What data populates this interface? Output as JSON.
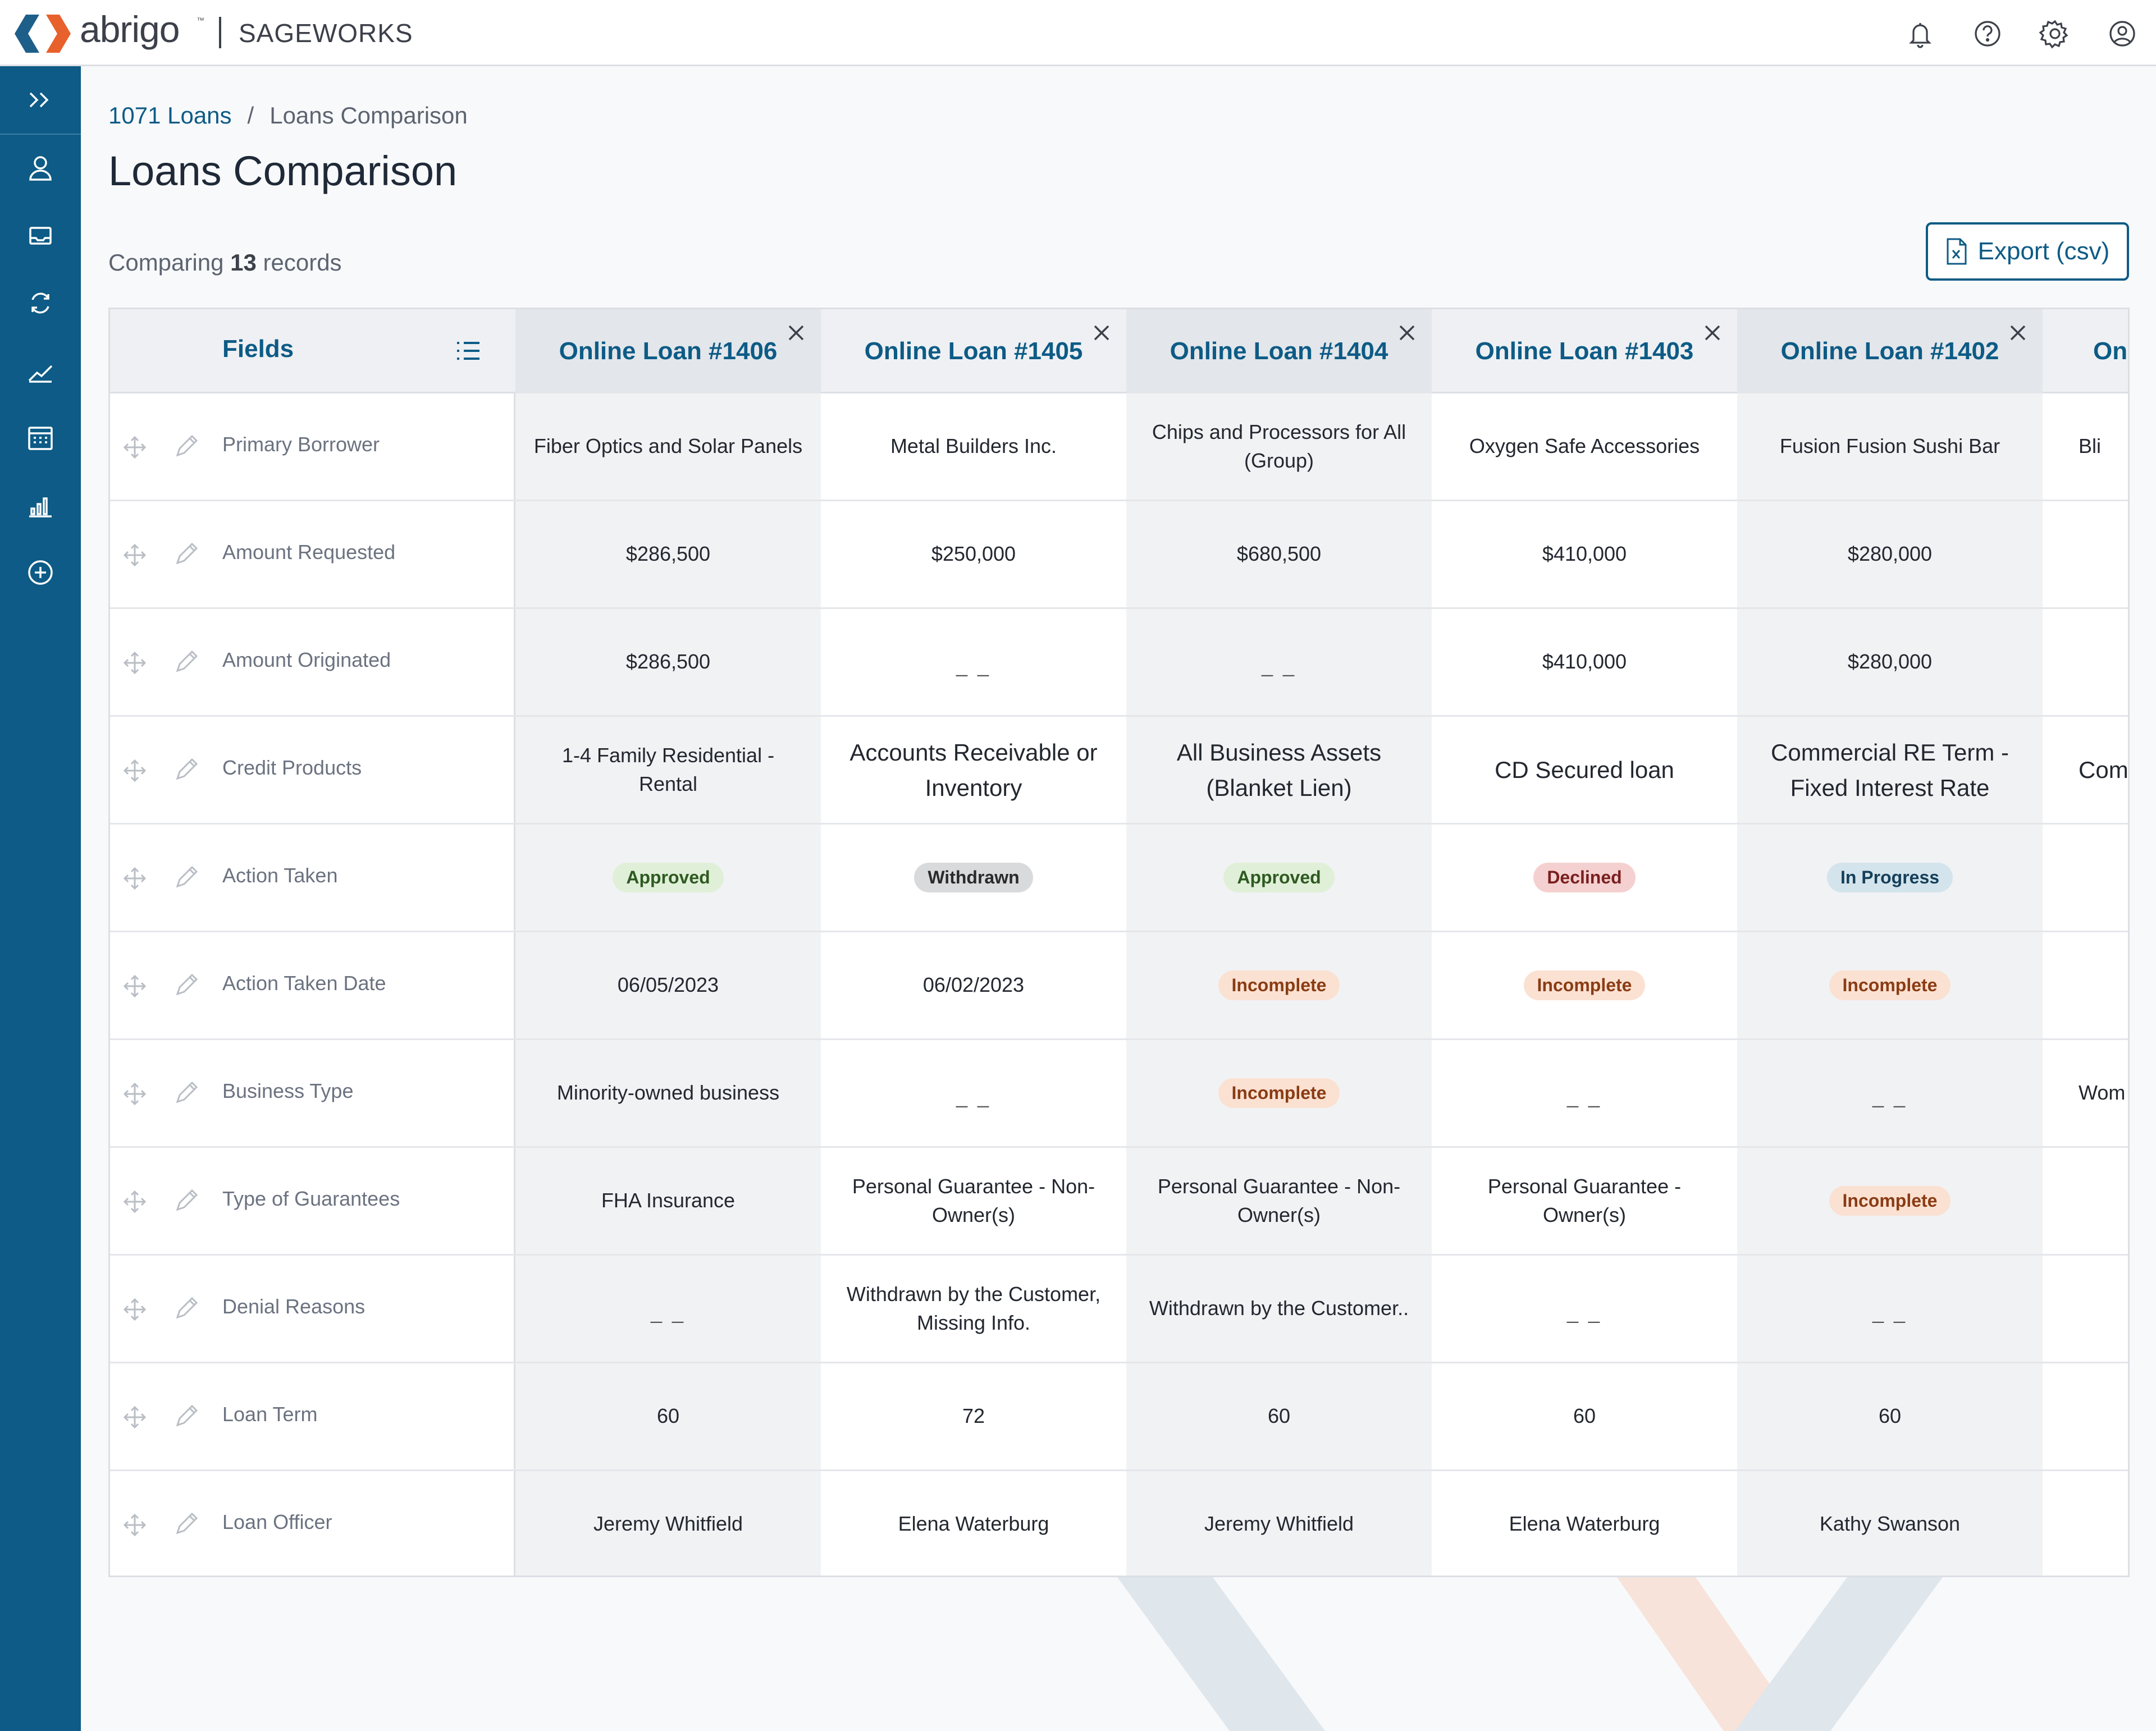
{
  "brand": {
    "logo_text": "abrigo",
    "tm": "™",
    "product": "SAGEWORKS"
  },
  "top_icons": [
    "bell-icon",
    "help-icon",
    "gear-icon",
    "user-circle-icon"
  ],
  "sidebar": [
    "expand-icon",
    "person-icon",
    "inbox-icon",
    "refresh-icon",
    "trend-icon",
    "calendar-icon",
    "bar-chart-icon",
    "add-circle-icon"
  ],
  "breadcrumb": {
    "link": "1071 Loans",
    "sep": "/",
    "current": "Loans Comparison"
  },
  "page_title": "Loans Comparison",
  "comparing": {
    "prefix": "Comparing",
    "count": "13",
    "suffix": "records"
  },
  "export_label": "Export (csv)",
  "fields_header": "Fields",
  "columns": [
    {
      "title": "Online Loan #1406"
    },
    {
      "title": "Online Loan #1405"
    },
    {
      "title": "Online Loan #1404"
    },
    {
      "title": "Online Loan #1403"
    },
    {
      "title": "Online Loan #1402"
    },
    {
      "title": "Onl"
    }
  ],
  "rows": [
    {
      "field": "Primary Borrower",
      "values": [
        "Fiber Optics and Solar Panels",
        "Metal Builders Inc.",
        "Chips and Processors for All (Group)",
        "Oxygen Safe Accessories",
        "Fusion Fusion Sushi Bar",
        "Bli"
      ]
    },
    {
      "field": "Amount Requested",
      "values": [
        "$286,500",
        "$250,000",
        "$680,500",
        "$410,000",
        "$280,000",
        ""
      ]
    },
    {
      "field": "Amount Originated",
      "values": [
        "$286,500",
        "_ _",
        "_ _",
        "$410,000",
        "$280,000",
        ""
      ]
    },
    {
      "field": "Credit Products",
      "values": [
        "1-4 Family Residential - Rental",
        "Accounts Receivable or Inventory",
        "All Business Assets (Blanket Lien)",
        "CD Secured loan",
        "Commercial RE Term - Fixed Interest Rate",
        "Com Fix"
      ]
    },
    {
      "field": "Action Taken",
      "values": [
        "Approved",
        "Withdrawn",
        "Approved",
        "Declined",
        "In Progress",
        ""
      ]
    },
    {
      "field": "Action Taken Date",
      "values": [
        "06/05/2023",
        "06/02/2023",
        "Incomplete",
        "Incomplete",
        "Incomplete",
        ""
      ]
    },
    {
      "field": "Business Type",
      "values": [
        "Minority-owned business",
        "_ _",
        "Incomplete",
        "_ _",
        "_ _",
        "Wom"
      ]
    },
    {
      "field": "Type of Guarantees",
      "values": [
        "FHA Insurance",
        "Personal Guarantee - Non-Owner(s)",
        "Personal Guarantee - Non-Owner(s)",
        "Personal Guarantee - Owner(s)",
        "Incomplete",
        ""
      ]
    },
    {
      "field": "Denial Reasons",
      "values": [
        "_ _",
        "Withdrawn by the Customer, Missing Info.",
        "Withdrawn by the Customer..",
        "_ _",
        "_ _",
        ""
      ]
    },
    {
      "field": "Loan Term",
      "values": [
        "60",
        "72",
        "60",
        "60",
        "60",
        ""
      ]
    },
    {
      "field": "Loan Officer",
      "values": [
        "Jeremy Whitfield",
        "Elena Waterburg",
        "Jeremy Whitfield",
        "Elena Waterburg",
        "Kathy Swanson",
        ""
      ]
    }
  ],
  "badge_colors": {
    "Approved": "#e0f0d8",
    "Withdrawn": "#d9dadc",
    "Declined": "#f5d0d0",
    "In Progress": "#d4e4ec",
    "Incomplete": "#fbe1d2"
  },
  "accent": "#0d5b86"
}
